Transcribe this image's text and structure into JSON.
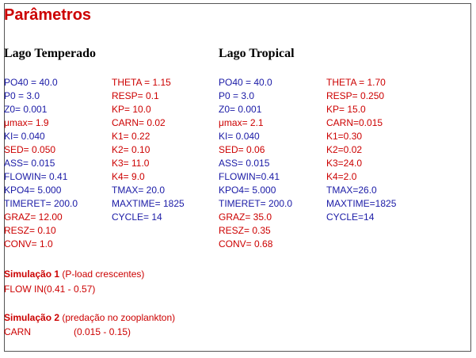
{
  "title": "Parâmetros",
  "temperate": {
    "heading": "Lago Temperado",
    "left": [
      {
        "text": "PO40 = 40.0",
        "color": "blue"
      },
      {
        "text": "P0 = 3.0",
        "color": "blue"
      },
      {
        "text": "Z0=  0.001",
        "color": "blue"
      },
      {
        "text": "μmax= 1.9",
        "color": "red"
      },
      {
        "text": "KI= 0.040",
        "color": "blue"
      },
      {
        "text": "SED= 0.050",
        "color": "red"
      },
      {
        "text": "ASS= 0.015",
        "color": "blue"
      },
      {
        "text": "FLOWIN= 0.41",
        "color": "blue"
      },
      {
        "text": "KPO4= 5.000",
        "color": "blue"
      },
      {
        "text": "TIMERET= 200.0",
        "color": "blue"
      },
      {
        "text": "GRAZ= 12.00",
        "color": "red"
      },
      {
        "text": "RESZ= 0.10",
        "color": "red"
      },
      {
        "text": "CONV= 1.0",
        "color": "red"
      }
    ],
    "right": [
      {
        "text": "THETA = 1.15",
        "color": "red"
      },
      {
        "text": "RESP= 0.1",
        "color": "red"
      },
      {
        "text": "KP= 10.0",
        "color": "red"
      },
      {
        "text": "CARN= 0.02",
        "color": "red"
      },
      {
        "text": "K1= 0.22",
        "color": "red"
      },
      {
        "text": "K2= 0.10",
        "color": "red"
      },
      {
        "text": "K3= 11.0",
        "color": "red"
      },
      {
        "text": "K4= 9.0",
        "color": "red"
      },
      {
        "text": "TMAX= 20.0",
        "color": "blue"
      },
      {
        "text": "MAXTIME= 1825",
        "color": "blue"
      },
      {
        "text": "CYCLE= 14",
        "color": "blue"
      }
    ]
  },
  "tropical": {
    "heading": "Lago Tropical",
    "left": [
      {
        "text": "PO40 = 40.0",
        "color": "blue"
      },
      {
        "text": "P0 = 3.0",
        "color": "blue"
      },
      {
        "text": "Z0=  0.001",
        "color": "blue"
      },
      {
        "text": "μmax= 2.1",
        "color": "red"
      },
      {
        "text": "KI= 0.040",
        "color": "blue"
      },
      {
        "text": "SED= 0.06",
        "color": "red"
      },
      {
        "text": "ASS= 0.015",
        "color": "blue"
      },
      {
        "text": "FLOWIN=0.41",
        "color": "blue"
      },
      {
        "text": "KPO4= 5.000",
        "color": "blue"
      },
      {
        "text": "TIMERET= 200.0",
        "color": "blue"
      },
      {
        "text": "GRAZ= 35.0",
        "color": "red"
      },
      {
        "text": "RESZ= 0.35",
        "color": "red"
      },
      {
        "text": "CONV= 0.68",
        "color": "red"
      }
    ],
    "right": [
      {
        "text": "THETA = 1.70",
        "color": "red"
      },
      {
        "text": "RESP= 0.250",
        "color": "red"
      },
      {
        "text": "KP= 15.0",
        "color": "red"
      },
      {
        "text": "CARN=0.015",
        "color": "red"
      },
      {
        "text": "K1=0.30",
        "color": "red"
      },
      {
        "text": "K2=0.02",
        "color": "red"
      },
      {
        "text": "K3=24.0",
        "color": "red"
      },
      {
        "text": "K4=2.0",
        "color": "red"
      },
      {
        "text": "TMAX=26.0",
        "color": "blue"
      },
      {
        "text": "MAXTIME=1825",
        "color": "blue"
      },
      {
        "text": "CYCLE=14",
        "color": "blue"
      }
    ]
  },
  "simulation1": {
    "label": "Simulação 1",
    "desc": "(P-load crescentes)",
    "line_name": "FLOW IN",
    "line_range": "(0.41 - 0.57)"
  },
  "simulation2": {
    "label": "Simulação 2",
    "desc": "(predação no zooplankton)",
    "line_name": "CARN",
    "line_range": "(0.015 - 0.15)"
  },
  "colors": {
    "blue": "#1a1aa6",
    "red": "#cc0000",
    "title": "#cc0000"
  }
}
